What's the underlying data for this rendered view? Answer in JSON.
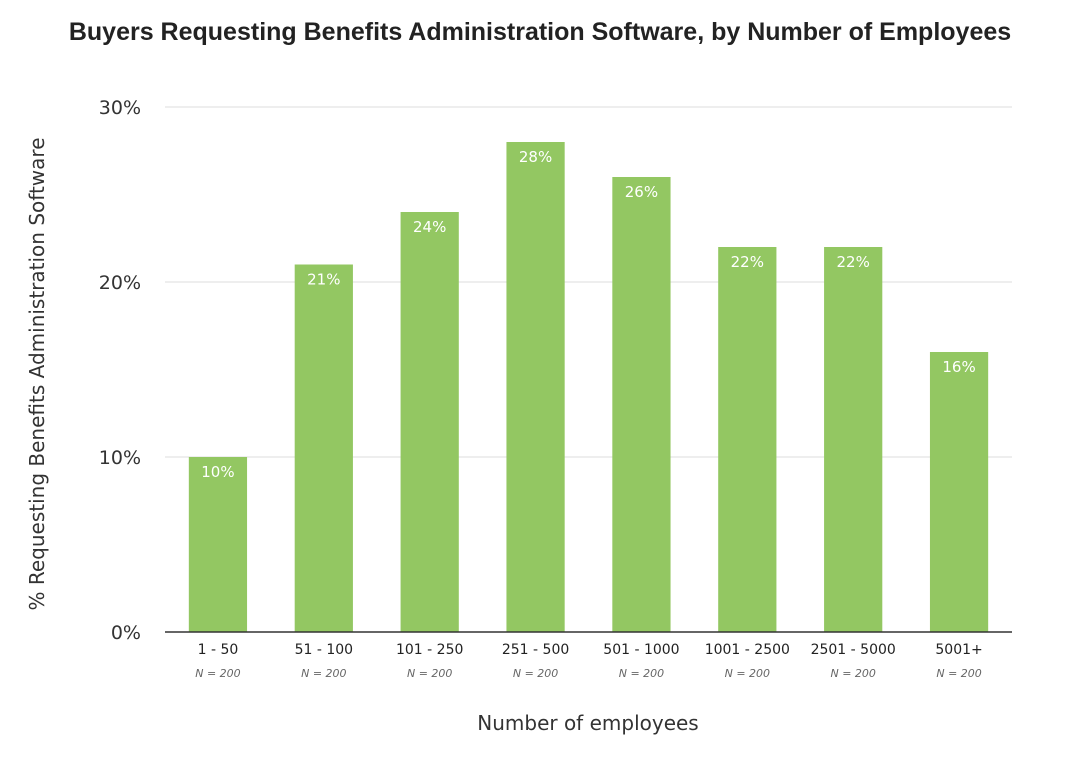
{
  "chart_data": {
    "type": "bar",
    "title": "Buyers Requesting Benefits Administration Software, by Number of Employees",
    "xlabel": "Number of employees",
    "ylabel": "% Requesting Benefits Administration Software",
    "categories": [
      "1 - 50",
      "51 - 100",
      "101 - 250",
      "251 - 500",
      "501 - 1000",
      "1001 - 2500",
      "2501 - 5000",
      "5001+"
    ],
    "sample_sizes": [
      "N = 200",
      "N = 200",
      "N = 200",
      "N = 200",
      "N = 200",
      "N = 200",
      "N = 200",
      "N = 200"
    ],
    "values": [
      10,
      21,
      24,
      28,
      26,
      22,
      22,
      16
    ],
    "data_labels": [
      "10%",
      "21%",
      "24%",
      "28%",
      "26%",
      "22%",
      "22%",
      "16%"
    ],
    "ylim": [
      0,
      30
    ],
    "yticks": [
      0,
      10,
      20,
      30
    ],
    "ytick_labels": [
      "0%",
      "10%",
      "20%",
      "30%"
    ],
    "grid": true,
    "bar_color": "#93c762"
  }
}
